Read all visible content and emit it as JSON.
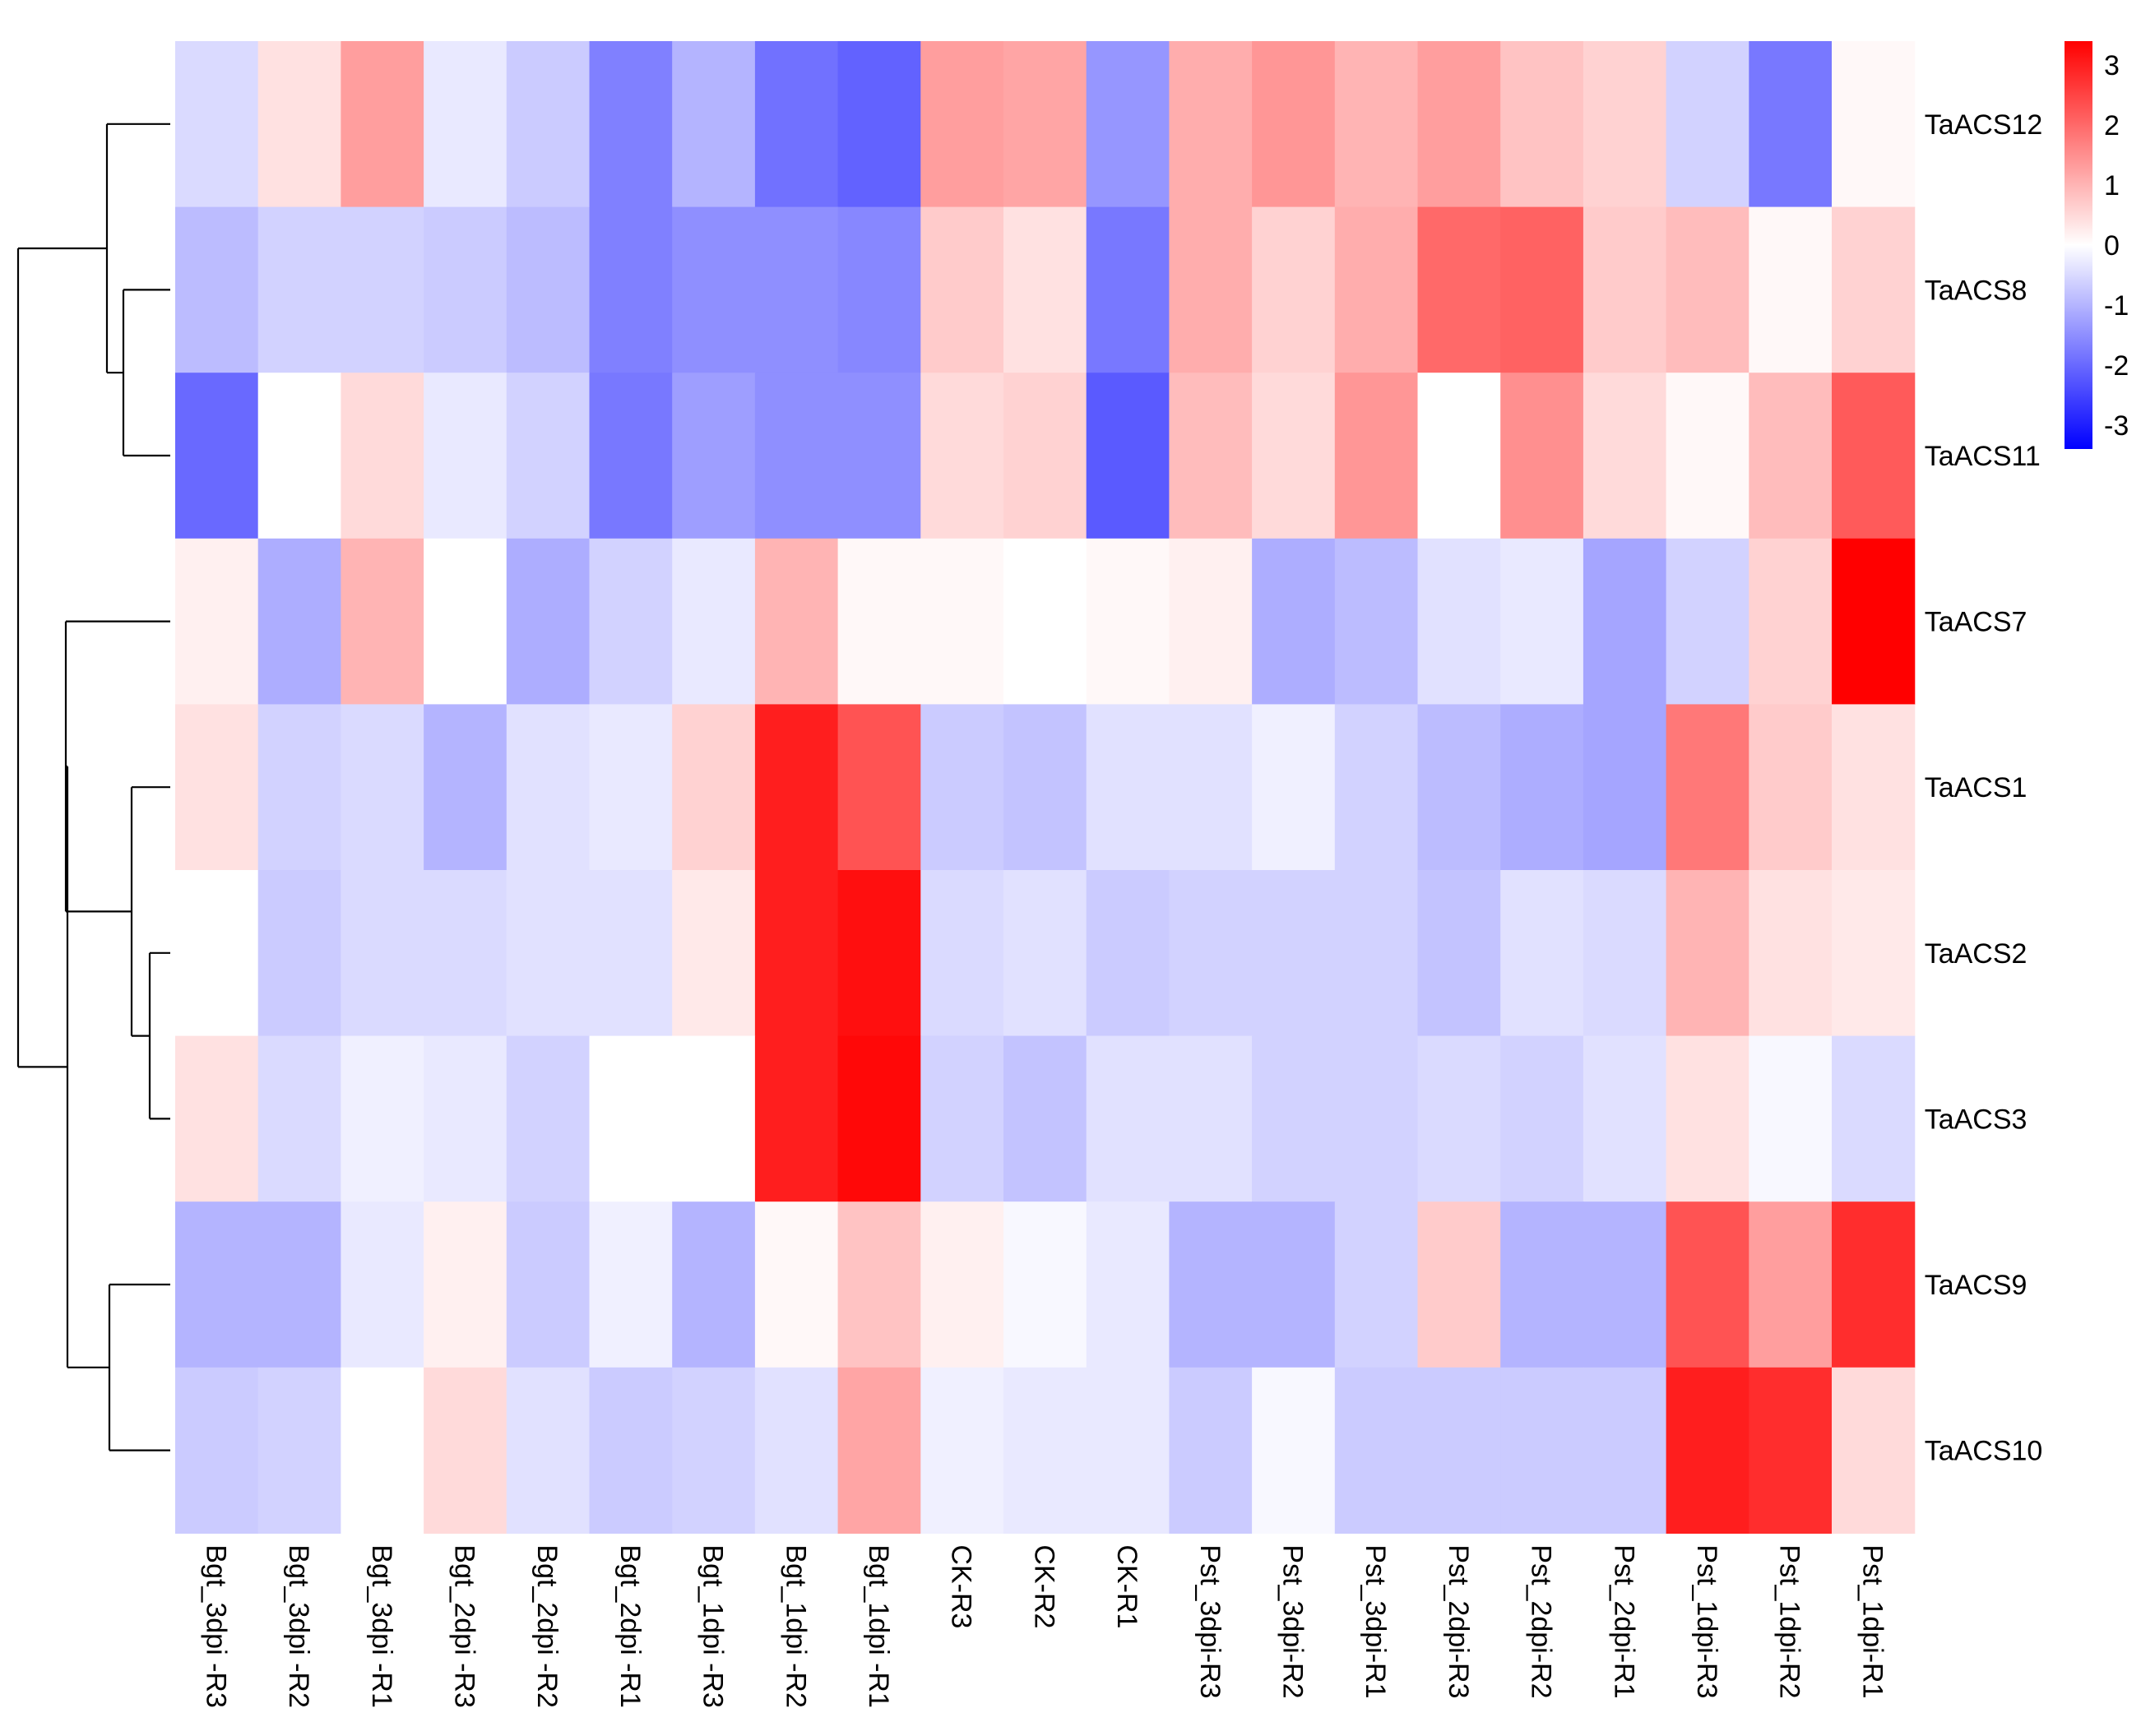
{
  "chart_data": {
    "type": "heatmap",
    "title": "",
    "rows": [
      "TaACS12",
      "TaACS8",
      "TaACS11",
      "TaACS7",
      "TaACS1",
      "TaACS2",
      "TaACS3",
      "TaACS9",
      "TaACS10"
    ],
    "columns": [
      "Bgt_3dpi -R3",
      "Bgt_3dpi -R2",
      "Bgt_3dpi -R1",
      "Bgt_2dpi -R3",
      "Bgt_2dpi -R2",
      "Bgt_2dpi -R1",
      "Bgt_1dpi -R3",
      "Bgt_1dpi -R2",
      "Bgt_1dpi -R1",
      "CK-R3",
      "CK-R2",
      "CK-R1",
      "Pst_3dpi-R3",
      "Pst_3dpi-R2",
      "Pst_3dpi-R1",
      "Pst_2dpi-R3",
      "Pst_2dpi-R2",
      "Pst_2dpi-R1",
      "Pst_1dpi-R3",
      "Pst_1dpi-R2",
      "Pst_1dpi-R1"
    ],
    "values": [
      [
        -0.5,
        0.4,
        1.3,
        -0.3,
        -0.7,
        -1.7,
        -1.0,
        -1.9,
        -2.1,
        1.3,
        1.2,
        -1.4,
        1.1,
        1.4,
        1.0,
        1.3,
        0.8,
        0.6,
        -0.6,
        -1.8,
        0.1
      ],
      [
        -0.9,
        -0.6,
        -0.6,
        -0.7,
        -0.9,
        -1.7,
        -1.5,
        -1.5,
        -1.6,
        0.7,
        0.4,
        -1.8,
        1.1,
        0.6,
        1.1,
        2.0,
        2.1,
        0.7,
        0.9,
        0.1,
        0.6
      ],
      [
        -2.0,
        0.0,
        0.5,
        -0.3,
        -0.6,
        -1.8,
        -1.3,
        -1.5,
        -1.5,
        0.5,
        0.6,
        -2.2,
        0.9,
        0.5,
        1.4,
        0.0,
        1.5,
        0.5,
        0.1,
        0.9,
        2.2
      ],
      [
        0.2,
        -1.1,
        1.0,
        0.0,
        -1.1,
        -0.6,
        -0.3,
        1.0,
        0.1,
        0.1,
        0.0,
        0.1,
        0.2,
        -1.1,
        -0.9,
        -0.4,
        -0.3,
        -1.2,
        -0.6,
        0.6,
        3.5
      ],
      [
        0.4,
        -0.6,
        -0.5,
        -1.0,
        -0.4,
        -0.3,
        0.6,
        3.0,
        2.3,
        -0.7,
        -0.8,
        -0.4,
        -0.4,
        -0.2,
        -0.6,
        -0.9,
        -1.1,
        -1.2,
        1.8,
        0.7,
        0.4
      ],
      [
        0.0,
        -0.7,
        -0.5,
        -0.5,
        -0.4,
        -0.4,
        0.3,
        3.0,
        3.2,
        -0.5,
        -0.4,
        -0.7,
        -0.6,
        -0.6,
        -0.6,
        -0.8,
        -0.4,
        -0.5,
        1.0,
        0.4,
        0.3
      ],
      [
        0.4,
        -0.5,
        -0.2,
        -0.3,
        -0.6,
        0.0,
        0.0,
        3.0,
        3.3,
        -0.6,
        -0.8,
        -0.4,
        -0.4,
        -0.6,
        -0.6,
        -0.5,
        -0.6,
        -0.4,
        0.4,
        -0.1,
        -0.5
      ],
      [
        -1.0,
        -1.0,
        -0.3,
        0.2,
        -0.7,
        -0.2,
        -1.0,
        0.1,
        0.8,
        0.2,
        -0.1,
        -0.3,
        -1.0,
        -1.0,
        -0.6,
        0.7,
        -1.0,
        -1.0,
        2.3,
        1.3,
        2.8
      ],
      [
        -0.7,
        -0.6,
        0.0,
        0.5,
        -0.4,
        -0.7,
        -0.6,
        -0.4,
        1.2,
        -0.2,
        -0.3,
        -0.3,
        -0.7,
        -0.1,
        -0.7,
        -0.7,
        -0.7,
        -0.7,
        3.0,
        2.8,
        0.5
      ]
    ],
    "color_scale": {
      "min": -3.4,
      "max": 3.4,
      "low_color": "#0000ff",
      "mid_color": "#ffffff",
      "high_color": "#ff0000",
      "ticks": [
        3,
        2,
        1,
        0,
        -1,
        -2,
        -3
      ]
    },
    "legend": "right",
    "dendrogram": "rows"
  }
}
